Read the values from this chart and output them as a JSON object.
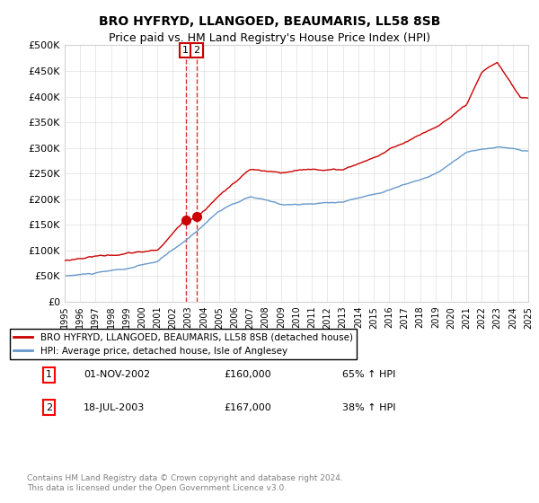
{
  "title": "BRO HYFRYD, LLANGOED, BEAUMARIS, LL58 8SB",
  "subtitle": "Price paid vs. HM Land Registry's House Price Index (HPI)",
  "legend_label_red": "BRO HYFRYD, LLANGOED, BEAUMARIS, LL58 8SB (detached house)",
  "legend_label_blue": "HPI: Average price, detached house, Isle of Anglesey",
  "transaction1_label": "1",
  "transaction1_date": "01-NOV-2002",
  "transaction1_price": "£160,000",
  "transaction1_hpi": "65% ↑ HPI",
  "transaction2_label": "2",
  "transaction2_date": "18-JUL-2003",
  "transaction2_price": "£167,000",
  "transaction2_hpi": "38% ↑ HPI",
  "footnote": "Contains HM Land Registry data © Crown copyright and database right 2024.\nThis data is licensed under the Open Government Licence v3.0.",
  "ylim": [
    0,
    500000
  ],
  "yticks": [
    0,
    50000,
    100000,
    150000,
    200000,
    250000,
    300000,
    350000,
    400000,
    450000,
    500000
  ],
  "red_color": "#cc0000",
  "blue_color": "#6699cc",
  "marker1_x": 2002.83,
  "marker1_y": 160000,
  "marker2_x": 2003.54,
  "marker2_y": 167000,
  "vline_x1": 2002.83,
  "vline_x2": 2003.54,
  "xmin": 1995,
  "xmax": 2025,
  "hpi_x": [
    1995,
    1997,
    1999,
    2001,
    2003,
    2005,
    2007,
    2009,
    2011,
    2013,
    2015,
    2017,
    2019,
    2021,
    2023,
    2025
  ],
  "hpi_y": [
    50000,
    55000,
    62000,
    75000,
    120000,
    175000,
    200000,
    185000,
    185000,
    190000,
    205000,
    225000,
    245000,
    285000,
    295000,
    285000
  ],
  "red_x": [
    1995,
    1997,
    1999,
    2001,
    2002.83,
    2003.54,
    2005,
    2007,
    2009,
    2011,
    2013,
    2015,
    2017,
    2019,
    2021,
    2022,
    2023,
    2024.5
  ],
  "red_y": [
    80000,
    90000,
    95000,
    100000,
    160000,
    167000,
    210000,
    260000,
    250000,
    255000,
    255000,
    280000,
    310000,
    340000,
    380000,
    440000,
    460000,
    390000
  ]
}
